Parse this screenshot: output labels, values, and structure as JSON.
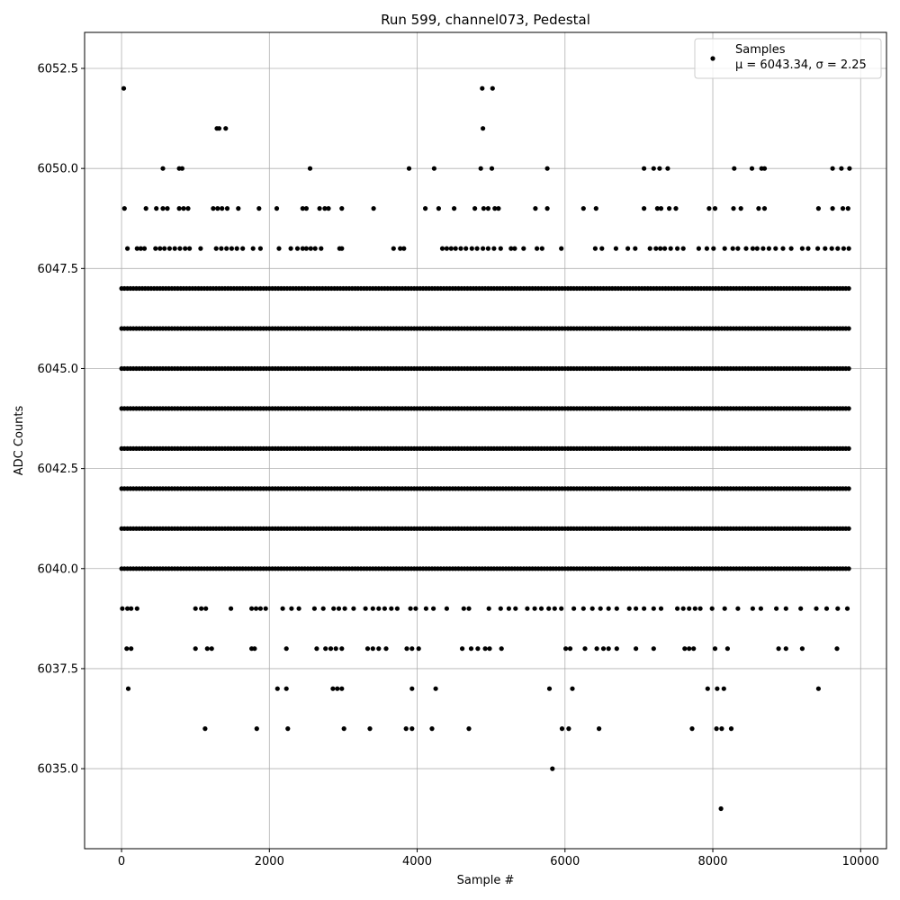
{
  "chart_data": {
    "type": "scatter",
    "title": "Run 599, channel073, Pedestal",
    "xlabel": "Sample #",
    "ylabel": "ADC Counts",
    "xlim": [
      -500,
      10350
    ],
    "ylim": [
      6033.0,
      6053.4
    ],
    "xticks": [
      0,
      2000,
      4000,
      6000,
      8000,
      10000
    ],
    "xtick_labels": [
      "0",
      "2000",
      "4000",
      "6000",
      "8000",
      "10000"
    ],
    "yticks": [
      6035.0,
      6037.5,
      6040.0,
      6042.5,
      6045.0,
      6047.5,
      6050.0,
      6052.5
    ],
    "ytick_labels": [
      "6035.0",
      "6037.5",
      "6040.0",
      "6042.5",
      "6045.0",
      "6047.5",
      "6050.0",
      "6052.5"
    ],
    "grid": true,
    "legend_position": "top-right",
    "marker_color": "#000000",
    "legend": {
      "series_name": "Samples",
      "stats_label": "μ = 6043.34, σ = 2.25"
    },
    "dense_levels": [
      {
        "y": 6040,
        "x_range": [
          0,
          9840
        ]
      },
      {
        "y": 6041,
        "x_range": [
          0,
          9840
        ]
      },
      {
        "y": 6042,
        "x_range": [
          0,
          9840
        ]
      },
      {
        "y": 6043,
        "x_range": [
          0,
          9840
        ]
      },
      {
        "y": 6044,
        "x_range": [
          0,
          9840
        ]
      },
      {
        "y": 6045,
        "x_range": [
          0,
          9840
        ]
      },
      {
        "y": 6046,
        "x_range": [
          0,
          9840
        ]
      },
      {
        "y": 6047,
        "x_range": [
          0,
          9840
        ]
      }
    ],
    "points": [
      [
        30,
        6052
      ],
      [
        4880,
        6052
      ],
      [
        5020,
        6052
      ],
      [
        1290,
        6051
      ],
      [
        1320,
        6051
      ],
      [
        1410,
        6051
      ],
      [
        4890,
        6051
      ],
      [
        560,
        6050
      ],
      [
        780,
        6050
      ],
      [
        820,
        6050
      ],
      [
        2550,
        6050
      ],
      [
        3890,
        6050
      ],
      [
        4230,
        6050
      ],
      [
        4860,
        6050
      ],
      [
        5010,
        6050
      ],
      [
        5760,
        6050
      ],
      [
        7070,
        6050
      ],
      [
        7200,
        6050
      ],
      [
        7280,
        6050
      ],
      [
        7390,
        6050
      ],
      [
        8290,
        6050
      ],
      [
        8530,
        6050
      ],
      [
        8660,
        6050
      ],
      [
        8700,
        6050
      ],
      [
        9620,
        6050
      ],
      [
        9740,
        6050
      ],
      [
        9850,
        6050
      ],
      [
        40,
        6049
      ],
      [
        330,
        6049
      ],
      [
        470,
        6049
      ],
      [
        560,
        6049
      ],
      [
        620,
        6049
      ],
      [
        780,
        6049
      ],
      [
        840,
        6049
      ],
      [
        900,
        6049
      ],
      [
        1240,
        6049
      ],
      [
        1300,
        6049
      ],
      [
        1360,
        6049
      ],
      [
        1430,
        6049
      ],
      [
        1580,
        6049
      ],
      [
        1860,
        6049
      ],
      [
        2100,
        6049
      ],
      [
        2450,
        6049
      ],
      [
        2500,
        6049
      ],
      [
        2680,
        6049
      ],
      [
        2750,
        6049
      ],
      [
        2800,
        6049
      ],
      [
        2980,
        6049
      ],
      [
        3410,
        6049
      ],
      [
        4110,
        6049
      ],
      [
        4290,
        6049
      ],
      [
        4500,
        6049
      ],
      [
        4780,
        6049
      ],
      [
        4900,
        6049
      ],
      [
        4960,
        6049
      ],
      [
        5050,
        6049
      ],
      [
        5100,
        6049
      ],
      [
        5600,
        6049
      ],
      [
        5760,
        6049
      ],
      [
        6250,
        6049
      ],
      [
        6420,
        6049
      ],
      [
        7070,
        6049
      ],
      [
        7250,
        6049
      ],
      [
        7300,
        6049
      ],
      [
        7410,
        6049
      ],
      [
        7500,
        6049
      ],
      [
        7950,
        6049
      ],
      [
        8030,
        6049
      ],
      [
        8280,
        6049
      ],
      [
        8380,
        6049
      ],
      [
        8620,
        6049
      ],
      [
        8700,
        6049
      ],
      [
        9430,
        6049
      ],
      [
        9620,
        6049
      ],
      [
        9760,
        6049
      ],
      [
        9830,
        6049
      ],
      [
        80,
        6048
      ],
      [
        210,
        6048
      ],
      [
        260,
        6048
      ],
      [
        310,
        6048
      ],
      [
        460,
        6048
      ],
      [
        520,
        6048
      ],
      [
        580,
        6048
      ],
      [
        650,
        6048
      ],
      [
        720,
        6048
      ],
      [
        790,
        6048
      ],
      [
        860,
        6048
      ],
      [
        920,
        6048
      ],
      [
        1070,
        6048
      ],
      [
        1280,
        6048
      ],
      [
        1350,
        6048
      ],
      [
        1420,
        6048
      ],
      [
        1490,
        6048
      ],
      [
        1560,
        6048
      ],
      [
        1640,
        6048
      ],
      [
        1780,
        6048
      ],
      [
        1880,
        6048
      ],
      [
        2130,
        6048
      ],
      [
        2290,
        6048
      ],
      [
        2380,
        6048
      ],
      [
        2450,
        6048
      ],
      [
        2500,
        6048
      ],
      [
        2560,
        6048
      ],
      [
        2620,
        6048
      ],
      [
        2700,
        6048
      ],
      [
        2950,
        6048
      ],
      [
        2980,
        6048
      ],
      [
        3680,
        6048
      ],
      [
        3770,
        6048
      ],
      [
        3820,
        6048
      ],
      [
        4340,
        6048
      ],
      [
        4400,
        6048
      ],
      [
        4460,
        6048
      ],
      [
        4520,
        6048
      ],
      [
        4590,
        6048
      ],
      [
        4660,
        6048
      ],
      [
        4740,
        6048
      ],
      [
        4810,
        6048
      ],
      [
        4890,
        6048
      ],
      [
        4960,
        6048
      ],
      [
        5040,
        6048
      ],
      [
        5130,
        6048
      ],
      [
        5270,
        6048
      ],
      [
        5320,
        6048
      ],
      [
        5440,
        6048
      ],
      [
        5620,
        6048
      ],
      [
        5690,
        6048
      ],
      [
        5950,
        6048
      ],
      [
        6410,
        6048
      ],
      [
        6500,
        6048
      ],
      [
        6690,
        6048
      ],
      [
        6850,
        6048
      ],
      [
        6950,
        6048
      ],
      [
        7150,
        6048
      ],
      [
        7230,
        6048
      ],
      [
        7290,
        6048
      ],
      [
        7350,
        6048
      ],
      [
        7430,
        6048
      ],
      [
        7520,
        6048
      ],
      [
        7600,
        6048
      ],
      [
        7810,
        6048
      ],
      [
        7920,
        6048
      ],
      [
        8010,
        6048
      ],
      [
        8160,
        6048
      ],
      [
        8270,
        6048
      ],
      [
        8340,
        6048
      ],
      [
        8450,
        6048
      ],
      [
        8540,
        6048
      ],
      [
        8600,
        6048
      ],
      [
        8680,
        6048
      ],
      [
        8760,
        6048
      ],
      [
        8850,
        6048
      ],
      [
        8950,
        6048
      ],
      [
        9060,
        6048
      ],
      [
        9210,
        6048
      ],
      [
        9290,
        6048
      ],
      [
        9420,
        6048
      ],
      [
        9520,
        6048
      ],
      [
        9610,
        6048
      ],
      [
        9690,
        6048
      ],
      [
        9770,
        6048
      ],
      [
        9840,
        6048
      ],
      [
        10,
        6039
      ],
      [
        80,
        6039
      ],
      [
        130,
        6039
      ],
      [
        210,
        6039
      ],
      [
        1000,
        6039
      ],
      [
        1080,
        6039
      ],
      [
        1140,
        6039
      ],
      [
        1480,
        6039
      ],
      [
        1760,
        6039
      ],
      [
        1820,
        6039
      ],
      [
        1880,
        6039
      ],
      [
        1950,
        6039
      ],
      [
        2180,
        6039
      ],
      [
        2300,
        6039
      ],
      [
        2400,
        6039
      ],
      [
        2610,
        6039
      ],
      [
        2730,
        6039
      ],
      [
        2870,
        6039
      ],
      [
        2940,
        6039
      ],
      [
        3020,
        6039
      ],
      [
        3140,
        6039
      ],
      [
        3300,
        6039
      ],
      [
        3400,
        6039
      ],
      [
        3480,
        6039
      ],
      [
        3560,
        6039
      ],
      [
        3650,
        6039
      ],
      [
        3730,
        6039
      ],
      [
        3910,
        6039
      ],
      [
        3980,
        6039
      ],
      [
        4120,
        6039
      ],
      [
        4220,
        6039
      ],
      [
        4400,
        6039
      ],
      [
        4630,
        6039
      ],
      [
        4700,
        6039
      ],
      [
        4970,
        6039
      ],
      [
        5130,
        6039
      ],
      [
        5240,
        6039
      ],
      [
        5330,
        6039
      ],
      [
        5490,
        6039
      ],
      [
        5590,
        6039
      ],
      [
        5680,
        6039
      ],
      [
        5780,
        6039
      ],
      [
        5860,
        6039
      ],
      [
        5950,
        6039
      ],
      [
        6120,
        6039
      ],
      [
        6250,
        6039
      ],
      [
        6370,
        6039
      ],
      [
        6480,
        6039
      ],
      [
        6590,
        6039
      ],
      [
        6700,
        6039
      ],
      [
        6870,
        6039
      ],
      [
        6960,
        6039
      ],
      [
        7070,
        6039
      ],
      [
        7200,
        6039
      ],
      [
        7300,
        6039
      ],
      [
        7520,
        6039
      ],
      [
        7600,
        6039
      ],
      [
        7680,
        6039
      ],
      [
        7760,
        6039
      ],
      [
        7830,
        6039
      ],
      [
        7990,
        6039
      ],
      [
        8160,
        6039
      ],
      [
        8340,
        6039
      ],
      [
        8540,
        6039
      ],
      [
        8650,
        6039
      ],
      [
        8860,
        6039
      ],
      [
        8990,
        6039
      ],
      [
        9190,
        6039
      ],
      [
        9400,
        6039
      ],
      [
        9540,
        6039
      ],
      [
        9690,
        6039
      ],
      [
        9820,
        6039
      ],
      [
        70,
        6038
      ],
      [
        130,
        6038
      ],
      [
        1000,
        6038
      ],
      [
        1160,
        6038
      ],
      [
        1220,
        6038
      ],
      [
        1760,
        6038
      ],
      [
        1800,
        6038
      ],
      [
        2230,
        6038
      ],
      [
        2640,
        6038
      ],
      [
        2760,
        6038
      ],
      [
        2830,
        6038
      ],
      [
        2900,
        6038
      ],
      [
        2980,
        6038
      ],
      [
        3330,
        6038
      ],
      [
        3400,
        6038
      ],
      [
        3480,
        6038
      ],
      [
        3580,
        6038
      ],
      [
        3860,
        6038
      ],
      [
        3930,
        6038
      ],
      [
        4020,
        6038
      ],
      [
        4610,
        6038
      ],
      [
        4730,
        6038
      ],
      [
        4820,
        6038
      ],
      [
        4920,
        6038
      ],
      [
        4980,
        6038
      ],
      [
        5140,
        6038
      ],
      [
        6010,
        6038
      ],
      [
        6070,
        6038
      ],
      [
        6270,
        6038
      ],
      [
        6430,
        6038
      ],
      [
        6520,
        6038
      ],
      [
        6590,
        6038
      ],
      [
        6700,
        6038
      ],
      [
        6960,
        6038
      ],
      [
        7200,
        6038
      ],
      [
        7620,
        6038
      ],
      [
        7680,
        6038
      ],
      [
        7740,
        6038
      ],
      [
        8030,
        6038
      ],
      [
        8200,
        6038
      ],
      [
        8890,
        6038
      ],
      [
        8990,
        6038
      ],
      [
        9210,
        6038
      ],
      [
        9680,
        6038
      ],
      [
        90,
        6037
      ],
      [
        2110,
        6037
      ],
      [
        2230,
        6037
      ],
      [
        2860,
        6037
      ],
      [
        2920,
        6037
      ],
      [
        2980,
        6037
      ],
      [
        3930,
        6037
      ],
      [
        4250,
        6037
      ],
      [
        5790,
        6037
      ],
      [
        6100,
        6037
      ],
      [
        7930,
        6037
      ],
      [
        8060,
        6037
      ],
      [
        8150,
        6037
      ],
      [
        9430,
        6037
      ],
      [
        1130,
        6036
      ],
      [
        1830,
        6036
      ],
      [
        2250,
        6036
      ],
      [
        3010,
        6036
      ],
      [
        3360,
        6036
      ],
      [
        3850,
        6036
      ],
      [
        3930,
        6036
      ],
      [
        4200,
        6036
      ],
      [
        4700,
        6036
      ],
      [
        5960,
        6036
      ],
      [
        6050,
        6036
      ],
      [
        6460,
        6036
      ],
      [
        7720,
        6036
      ],
      [
        8050,
        6036
      ],
      [
        8120,
        6036
      ],
      [
        8250,
        6036
      ],
      [
        5830,
        6035
      ],
      [
        8110,
        6034
      ]
    ]
  }
}
